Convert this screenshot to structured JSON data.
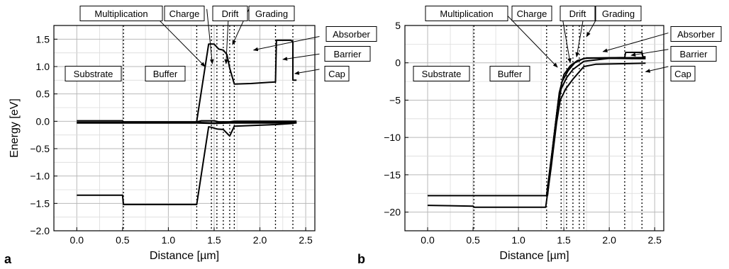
{
  "chart_data": [
    {
      "type": "line",
      "panel_label": "a",
      "xlabel": "Distance [µm]",
      "ylabel": "Energy [eV]",
      "xlim": [
        -0.25,
        2.6
      ],
      "ylim": [
        -2.0,
        1.75
      ],
      "xticks": [
        0.0,
        0.5,
        1.0,
        1.5,
        2.0,
        2.5
      ],
      "xtick_labels": [
        "0.0",
        "0.5",
        "1.0",
        "1.5",
        "2.0",
        "2.5"
      ],
      "yticks": [
        -2.0,
        -1.5,
        -1.0,
        -0.5,
        0.0,
        0.5,
        1.0,
        1.5
      ],
      "ytick_labels": [
        "-2.0",
        "-1.5",
        "-1.0",
        "-0.5",
        "0.0",
        "0.5",
        "1.0",
        "1.5"
      ],
      "grid": true,
      "boundaries": [
        0.51,
        1.31,
        1.47,
        1.53,
        1.6,
        1.67,
        1.72,
        2.17,
        2.36
      ],
      "series": [
        {
          "points": [
            [
              0.0,
              -1.35
            ],
            [
              0.5,
              -1.35
            ],
            [
              0.51,
              -1.52
            ],
            [
              1.31,
              -1.52
            ],
            [
              1.44,
              -0.1
            ],
            [
              1.47,
              -0.11
            ],
            [
              1.53,
              -0.14
            ],
            [
              1.6,
              -0.15
            ],
            [
              1.67,
              -0.27
            ],
            [
              1.72,
              -0.09
            ],
            [
              2.17,
              -0.06
            ],
            [
              2.36,
              -0.04
            ],
            [
              2.38,
              -0.03
            ],
            [
              2.4,
              -0.02
            ]
          ]
        },
        {
          "points": [
            [
              0.0,
              0.01
            ],
            [
              0.5,
              0.01
            ],
            [
              0.51,
              -0.01
            ],
            [
              1.31,
              -0.01
            ],
            [
              1.36,
              0.01
            ],
            [
              1.5,
              0.01
            ],
            [
              1.55,
              -0.01
            ],
            [
              1.67,
              -0.01
            ],
            [
              1.72,
              0.0
            ],
            [
              2.4,
              0.0
            ]
          ]
        },
        {
          "points": [
            [
              0.0,
              -0.02
            ],
            [
              1.31,
              -0.02
            ],
            [
              1.5,
              -0.03
            ],
            [
              1.67,
              -0.02
            ],
            [
              2.4,
              -0.02
            ]
          ]
        },
        {
          "points": [
            [
              0.0,
              -0.03
            ],
            [
              1.31,
              -0.03
            ],
            [
              1.5,
              -0.04
            ],
            [
              1.67,
              -0.03
            ],
            [
              2.4,
              -0.03
            ]
          ]
        },
        {
          "points": [
            [
              1.31,
              0.0
            ],
            [
              1.44,
              1.41
            ],
            [
              1.5,
              1.41
            ],
            [
              1.55,
              1.32
            ],
            [
              1.6,
              1.3
            ],
            [
              1.64,
              1.22
            ],
            [
              1.67,
              0.97
            ],
            [
              1.72,
              0.68
            ],
            [
              1.9,
              0.69
            ],
            [
              2.17,
              0.72
            ],
            [
              2.18,
              1.48
            ],
            [
              2.34,
              1.48
            ],
            [
              2.36,
              1.45
            ],
            [
              2.36,
              0.75
            ],
            [
              2.4,
              0.75
            ]
          ]
        }
      ],
      "regions": [
        {
          "label": "Substrate",
          "placement": "in-plot"
        },
        {
          "label": "Buffer",
          "placement": "in-plot"
        },
        {
          "label": "Multiplication",
          "placement": "top"
        },
        {
          "label": "Charge",
          "placement": "top"
        },
        {
          "label": "Drift",
          "placement": "top"
        },
        {
          "label": "Grading",
          "placement": "top"
        },
        {
          "label": "Absorber",
          "placement": "right"
        },
        {
          "label": "Barrier",
          "placement": "right"
        },
        {
          "label": "Cap",
          "placement": "right"
        }
      ],
      "arrows": [
        {
          "from": [
            0.78,
            2.05
          ],
          "to": [
            1.4,
            1.0
          ]
        },
        {
          "from": [
            1.42,
            2.05
          ],
          "to": [
            1.48,
            1.05
          ]
        },
        {
          "from": [
            1.66,
            2.05
          ],
          "to": [
            1.63,
            1.05
          ]
        },
        {
          "from": [
            1.88,
            2.05
          ],
          "to": [
            1.7,
            1.4
          ]
        },
        {
          "from": [
            2.65,
            1.55
          ],
          "to": [
            1.93,
            1.3
          ]
        },
        {
          "from": [
            2.65,
            1.23
          ],
          "to": [
            2.25,
            1.13
          ]
        },
        {
          "from": [
            2.65,
            0.95
          ],
          "to": [
            2.38,
            0.87
          ]
        }
      ]
    },
    {
      "type": "line",
      "panel_label": "b",
      "xlabel": "Distance [µm]",
      "ylabel": "",
      "xlim": [
        -0.25,
        2.6
      ],
      "ylim": [
        -22.5,
        5.0
      ],
      "xticks": [
        0.0,
        0.5,
        1.0,
        1.5,
        2.0,
        2.5
      ],
      "xtick_labels": [
        "0.0",
        "0.5",
        "1.0",
        "1.5",
        "2.0",
        "2.5"
      ],
      "yticks": [
        -20,
        -15,
        -10,
        -5,
        0,
        5
      ],
      "ytick_labels": [
        "-20",
        "-15",
        "-10",
        "-5",
        "0",
        "5"
      ],
      "grid": true,
      "boundaries": [
        0.51,
        1.31,
        1.47,
        1.53,
        1.6,
        1.67,
        1.72,
        2.17,
        2.36
      ],
      "series": [
        {
          "points": [
            [
              0.0,
              -19.1
            ],
            [
              0.5,
              -19.2
            ],
            [
              0.51,
              -19.35
            ],
            [
              1.3,
              -19.35
            ],
            [
              1.36,
              -14.0
            ],
            [
              1.42,
              -8.0
            ],
            [
              1.46,
              -5.0
            ],
            [
              1.52,
              -3.5
            ],
            [
              1.6,
              -2.2
            ],
            [
              1.72,
              -0.5
            ],
            [
              1.85,
              -0.2
            ],
            [
              2.4,
              -0.05
            ]
          ]
        },
        {
          "points": [
            [
              0.0,
              -17.8
            ],
            [
              1.31,
              -17.8
            ],
            [
              1.37,
              -12.0
            ],
            [
              1.43,
              -6.0
            ],
            [
              1.47,
              -3.5
            ],
            [
              1.53,
              -2.0
            ],
            [
              1.6,
              -0.9
            ],
            [
              1.72,
              0.2
            ],
            [
              2.0,
              0.6
            ],
            [
              2.4,
              0.55
            ]
          ]
        },
        {
          "points": [
            [
              1.31,
              -17.8
            ],
            [
              1.38,
              -11.0
            ],
            [
              1.44,
              -5.0
            ],
            [
              1.48,
              -2.5
            ],
            [
              1.55,
              -1.0
            ],
            [
              1.62,
              0.0
            ],
            [
              1.72,
              0.6
            ],
            [
              2.17,
              0.7
            ],
            [
              2.18,
              1.4
            ],
            [
              2.36,
              1.4
            ],
            [
              2.37,
              0.8
            ],
            [
              2.4,
              0.8
            ]
          ]
        },
        {
          "points": [
            [
              1.32,
              -17.8
            ],
            [
              1.39,
              -10.0
            ],
            [
              1.45,
              -4.0
            ],
            [
              1.5,
              -1.6
            ],
            [
              1.57,
              -0.4
            ],
            [
              1.65,
              0.3
            ],
            [
              1.75,
              0.65
            ],
            [
              2.4,
              0.7
            ]
          ]
        }
      ],
      "regions": [
        {
          "label": "Substrate",
          "placement": "in-plot"
        },
        {
          "label": "Buffer",
          "placement": "in-plot"
        },
        {
          "label": "Multiplication",
          "placement": "top"
        },
        {
          "label": "Charge",
          "placement": "top"
        },
        {
          "label": "Drift",
          "placement": "top"
        },
        {
          "label": "Grading",
          "placement": "top"
        },
        {
          "label": "Absorber",
          "placement": "right"
        },
        {
          "label": "Barrier",
          "placement": "right"
        },
        {
          "label": "Cap",
          "placement": "right"
        }
      ],
      "arrows": [
        {
          "from": [
            0.88,
            6.3
          ],
          "to": [
            1.43,
            -0.6
          ]
        },
        {
          "from": [
            1.48,
            6.3
          ],
          "to": [
            1.57,
            0.0
          ]
        },
        {
          "from": [
            1.72,
            6.3
          ],
          "to": [
            1.64,
            0.8
          ]
        },
        {
          "from": [
            1.88,
            6.3
          ],
          "to": [
            1.75,
            3.5
          ]
        },
        {
          "from": [
            2.65,
            4.0
          ],
          "to": [
            1.93,
            1.5
          ]
        },
        {
          "from": [
            2.65,
            1.8
          ],
          "to": [
            2.24,
            1.0
          ]
        },
        {
          "from": [
            2.65,
            -0.5
          ],
          "to": [
            2.4,
            -1.2
          ]
        }
      ]
    }
  ]
}
